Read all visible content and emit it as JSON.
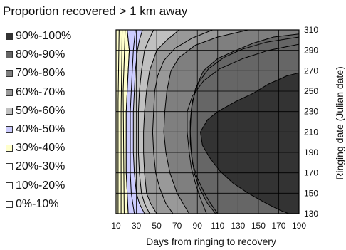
{
  "chart_data": {
    "type": "contour",
    "title": "Proportion recovered > 1 km away",
    "xlabel": "Days from ringing to recovery",
    "ylabel": "Ringing date (Julian date)",
    "x_ticks": [
      10,
      30,
      50,
      70,
      90,
      110,
      130,
      150,
      170,
      190
    ],
    "y_ticks": [
      130,
      150,
      170,
      190,
      210,
      230,
      250,
      270,
      290,
      310
    ],
    "xlim": [
      10,
      190
    ],
    "ylim": [
      130,
      310
    ],
    "grid": true,
    "legend_position": "left",
    "legend": [
      {
        "label": "90%-100%",
        "color": "#333333"
      },
      {
        "label": "80%-90%",
        "color": "#666666"
      },
      {
        "label": "70%-80%",
        "color": "#7f7f7f"
      },
      {
        "label": "60%-70%",
        "color": "#999999"
      },
      {
        "label": "50%-60%",
        "color": "#c0c0c0"
      },
      {
        "label": "40%-50%",
        "color": "#ccccff"
      },
      {
        "label": "30%-40%",
        "color": "#ffffcc"
      },
      {
        "label": "20%-30%",
        "color": "#ffffff"
      },
      {
        "label": "10%-20%",
        "color": "#ffffff"
      },
      {
        "label": "0%-10%",
        "color": "#ffffff"
      }
    ],
    "bands": [
      {
        "label": "30%-40%",
        "color": "#ffffcc",
        "boundary": [
          [
            10,
            130
          ],
          [
            10,
            310
          ],
          [
            21,
            310
          ],
          [
            23,
            290
          ],
          [
            22,
            270
          ],
          [
            21,
            250
          ],
          [
            20,
            230
          ],
          [
            20,
            210
          ],
          [
            20,
            190
          ],
          [
            20,
            170
          ],
          [
            21,
            150
          ],
          [
            22,
            130
          ]
        ]
      },
      {
        "label": "40%-50%",
        "color": "#ccccff",
        "boundary": [
          [
            21,
            310
          ],
          [
            23,
            290
          ],
          [
            22,
            270
          ],
          [
            21,
            250
          ],
          [
            20,
            230
          ],
          [
            20,
            210
          ],
          [
            20,
            190
          ],
          [
            20,
            170
          ],
          [
            21,
            150
          ],
          [
            22,
            130
          ],
          [
            190,
            130
          ],
          [
            190,
            310
          ]
        ]
      },
      {
        "label": "50%-60%",
        "color": "#c0c0c0",
        "boundary": [
          [
            36,
            310
          ],
          [
            33,
            300
          ],
          [
            31,
            290
          ],
          [
            29,
            270
          ],
          [
            28,
            250
          ],
          [
            27,
            230
          ],
          [
            27,
            210
          ],
          [
            27,
            190
          ],
          [
            28,
            170
          ],
          [
            30,
            150
          ],
          [
            33,
            140
          ],
          [
            38,
            130
          ],
          [
            190,
            130
          ],
          [
            190,
            310
          ]
        ]
      },
      {
        "label": "60%-70%",
        "color": "#999999",
        "boundary": [
          [
            72,
            310
          ],
          [
            60,
            300
          ],
          [
            50,
            290
          ],
          [
            43,
            270
          ],
          [
            40,
            250
          ],
          [
            38,
            230
          ],
          [
            37,
            210
          ],
          [
            37,
            190
          ],
          [
            38,
            170
          ],
          [
            40,
            150
          ],
          [
            44,
            140
          ],
          [
            50,
            130
          ],
          [
            190,
            130
          ],
          [
            190,
            310
          ]
        ]
      },
      {
        "label": "70%-80%",
        "color": "#7f7f7f",
        "boundary": [
          [
            140,
            310
          ],
          [
            110,
            303
          ],
          [
            88,
            295
          ],
          [
            72,
            283
          ],
          [
            64,
            270
          ],
          [
            60,
            250
          ],
          [
            58,
            230
          ],
          [
            57,
            210
          ],
          [
            59,
            190
          ],
          [
            63,
            170
          ],
          [
            70,
            150
          ],
          [
            76,
            140
          ],
          [
            82,
            130
          ],
          [
            190,
            130
          ],
          [
            190,
            310
          ]
        ]
      },
      {
        "label": "80%-90%",
        "color": "#666666",
        "boundary": [
          [
            190,
            306
          ],
          [
            165,
            303
          ],
          [
            145,
            297
          ],
          [
            128,
            290
          ],
          [
            110,
            282
          ],
          [
            96,
            270
          ],
          [
            88,
            252
          ],
          [
            84,
            232
          ],
          [
            83,
            210
          ],
          [
            84,
            190
          ],
          [
            87,
            170
          ],
          [
            92,
            155
          ],
          [
            100,
            140
          ],
          [
            108,
            130
          ],
          [
            190,
            130
          ]
        ]
      },
      {
        "label": "90%-100%",
        "color": "#333333",
        "boundary": [
          [
            190,
            268
          ],
          [
            178,
            265
          ],
          [
            160,
            257
          ],
          [
            145,
            248
          ],
          [
            128,
            240
          ],
          [
            110,
            230
          ],
          [
            100,
            222
          ],
          [
            93,
            210
          ],
          [
            95,
            197
          ],
          [
            102,
            185
          ],
          [
            112,
            172
          ],
          [
            125,
            160
          ],
          [
            140,
            150
          ],
          [
            158,
            140
          ],
          [
            172,
            133
          ],
          [
            180,
            130
          ],
          [
            190,
            130
          ]
        ]
      }
    ],
    "contour_lines": [
      [
        [
          12,
          130
        ],
        [
          12,
          240
        ],
        [
          13,
          310
        ]
      ],
      [
        [
          15,
          130
        ],
        [
          15,
          230
        ],
        [
          16,
          310
        ]
      ],
      [
        [
          18,
          130
        ],
        [
          17,
          250
        ],
        [
          19,
          310
        ]
      ],
      [
        [
          29,
          310
        ],
        [
          27,
          290
        ],
        [
          26,
          270
        ],
        [
          25,
          250
        ],
        [
          24,
          230
        ],
        [
          24,
          210
        ],
        [
          24,
          190
        ],
        [
          24,
          170
        ],
        [
          25,
          150
        ],
        [
          28,
          130
        ]
      ],
      [
        [
          47,
          310
        ],
        [
          42,
          300
        ],
        [
          38,
          290
        ],
        [
          35,
          270
        ],
        [
          33,
          250
        ],
        [
          32,
          230
        ],
        [
          32,
          210
        ],
        [
          32,
          190
        ],
        [
          33,
          170
        ],
        [
          35,
          150
        ],
        [
          38,
          140
        ],
        [
          43,
          130
        ]
      ],
      [
        [
          105,
          310
        ],
        [
          85,
          302
        ],
        [
          68,
          292
        ],
        [
          57,
          280
        ],
        [
          51,
          265
        ],
        [
          48,
          250
        ],
        [
          47,
          230
        ],
        [
          46,
          210
        ],
        [
          47,
          190
        ],
        [
          49,
          170
        ],
        [
          53,
          155
        ],
        [
          59,
          140
        ],
        [
          66,
          130
        ]
      ],
      [
        [
          190,
          296
        ],
        [
          160,
          290
        ],
        [
          135,
          282
        ],
        [
          112,
          272
        ],
        [
          96,
          260
        ],
        [
          85,
          245
        ],
        [
          80,
          230
        ],
        [
          80,
          210
        ],
        [
          82,
          190
        ],
        [
          84,
          175
        ],
        [
          88,
          160
        ],
        [
          93,
          145
        ],
        [
          99,
          130
        ]
      ],
      [
        [
          190,
          303
        ],
        [
          158,
          298
        ],
        [
          134,
          291
        ],
        [
          116,
          283
        ],
        [
          101,
          272
        ],
        [
          91,
          258
        ],
        [
          85,
          240
        ],
        [
          83,
          220
        ],
        [
          83,
          200
        ],
        [
          85,
          180
        ],
        [
          90,
          165
        ],
        [
          97,
          150
        ],
        [
          103,
          140
        ],
        [
          110,
          130
        ]
      ]
    ]
  }
}
